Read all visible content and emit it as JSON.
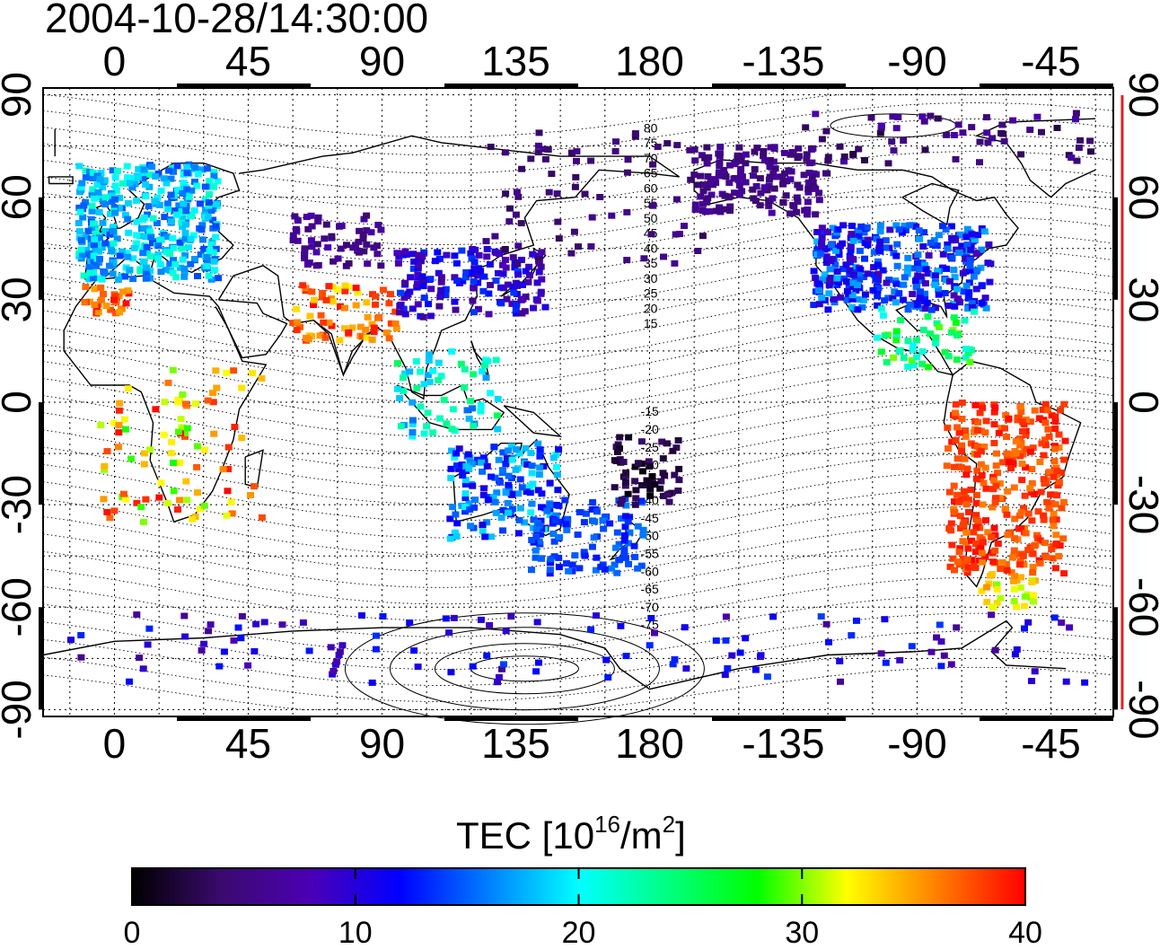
{
  "title": "2004-10-28/14:30:00",
  "map": {
    "lon_ticks": [
      "0",
      "45",
      "90",
      "135",
      "180",
      "-135",
      "-90",
      "-45"
    ],
    "lat_ticks": [
      "90",
      "60",
      "30",
      "0",
      "-30",
      "-60",
      "-90"
    ],
    "lon_range": [
      -24,
      336
    ],
    "lat_range": [
      -92,
      92
    ],
    "grid": true,
    "terminator_longitude": -21,
    "terminator_color": "#e02020",
    "magnetic_latitude_labels": {
      "north": [
        "80",
        "75",
        "70",
        "65",
        "60",
        "55",
        "50",
        "45",
        "40",
        "35",
        "30",
        "25",
        "20",
        "15"
      ],
      "south": [
        "-15",
        "-20",
        "-25",
        "-30",
        "-35",
        "-40",
        "-45",
        "-50",
        "-55",
        "-60",
        "-65",
        "-70",
        "-75"
      ]
    }
  },
  "colorbar": {
    "title_prefix": "TEC  [10",
    "title_exp": "16",
    "title_mid": "/m",
    "title_exp2": "2",
    "title_suffix": "]",
    "min": 0,
    "max": 40,
    "ticks": [
      "0",
      "10",
      "20",
      "30",
      "40"
    ],
    "colors": [
      "#000000",
      "#3a0a6e",
      "#4b00b4",
      "#0000ff",
      "#0080ff",
      "#00ffff",
      "#00ff80",
      "#00ff00",
      "#ffff00",
      "#ff8000",
      "#ff0000"
    ]
  }
}
